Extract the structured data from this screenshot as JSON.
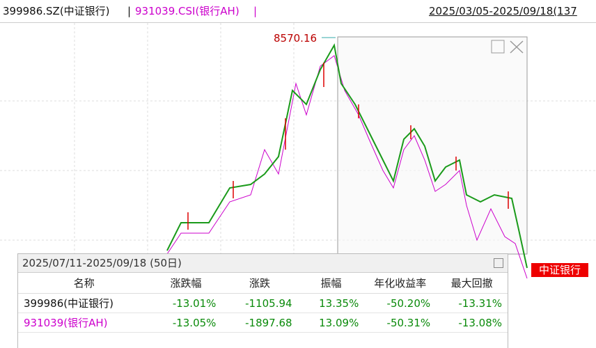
{
  "header": {
    "code1": "399986.SZ(中证银行)",
    "separator1": "|",
    "code2": "931039.CSI(银行AH)",
    "separator2": "|",
    "range": "2025/03/05-2025/09/18(137"
  },
  "peak_label": "8570.16",
  "series_tag": "中证银行",
  "panel": {
    "title": "2025/07/11-2025/09/18 (50日)",
    "columns": [
      "名称",
      "涨跌幅",
      "涨跌",
      "振幅",
      "年化收益率",
      "最大回撤"
    ],
    "rows": [
      [
        "399986(中证银行)",
        "-13.01%",
        "-1105.94",
        "13.35%",
        "-50.20%",
        "-13.31%"
      ],
      [
        "931039(银行AH)",
        "-13.05%",
        "-1897.68",
        "13.09%",
        "-50.31%",
        "-13.08%"
      ]
    ]
  }
}
